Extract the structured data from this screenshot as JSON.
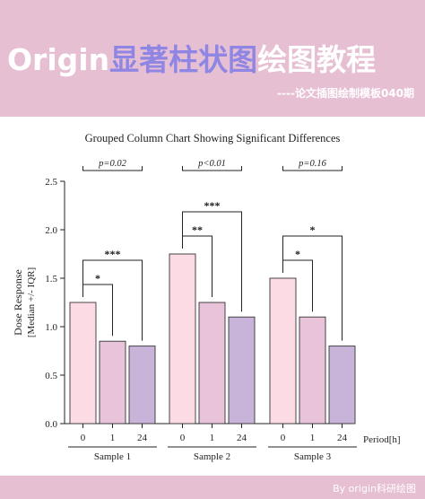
{
  "banner": {
    "title_part1": "Origin",
    "title_part2": "显著柱状图",
    "title_part3": "绘图教程",
    "subtitle": "----论文插图绘制模板040期"
  },
  "footer": {
    "text": "By origin科研绘图"
  },
  "colors": {
    "banner": "#e7bfd3",
    "accent": "#8f86e4",
    "bar_0": "#fcdbe5",
    "bar_1": "#e8c3d9",
    "bar_24": "#c8b3d9",
    "outline": "#333333"
  },
  "chart_data": {
    "type": "bar",
    "title": "Grouped Column Chart Showing Significant Differences",
    "ylabel_line1": "Dose Response",
    "ylabel_line2": "[Median +/- IQR]",
    "xlabel": "Period[h]",
    "ylim": [
      0,
      2.5
    ],
    "yticks": [
      "0.0",
      "0.5",
      "1.0",
      "1.5",
      "2.0",
      "2.5"
    ],
    "grid": false,
    "groups": [
      {
        "name": "Sample 1",
        "bars": [
          {
            "period": "0",
            "value": 1.25
          },
          {
            "period": "1",
            "value": 0.85
          },
          {
            "period": "24",
            "value": 0.8
          }
        ],
        "sig": [
          {
            "from": 0,
            "to": 1,
            "label": "*"
          },
          {
            "from": 0,
            "to": 2,
            "label": "***"
          }
        ],
        "p_label": "p=0.02"
      },
      {
        "name": "Sample 2",
        "bars": [
          {
            "period": "0",
            "value": 1.75
          },
          {
            "period": "1",
            "value": 1.25
          },
          {
            "period": "24",
            "value": 1.1
          }
        ],
        "sig": [
          {
            "from": 0,
            "to": 1,
            "label": "**"
          },
          {
            "from": 0,
            "to": 2,
            "label": "***"
          }
        ],
        "p_label": "p<0.01"
      },
      {
        "name": "Sample 3",
        "bars": [
          {
            "period": "0",
            "value": 1.5
          },
          {
            "period": "1",
            "value": 1.1
          },
          {
            "period": "24",
            "value": 0.8
          }
        ],
        "sig": [
          {
            "from": 0,
            "to": 1,
            "label": "*"
          },
          {
            "from": 0,
            "to": 2,
            "label": "*"
          }
        ],
        "p_label": "p=0.16"
      }
    ]
  }
}
